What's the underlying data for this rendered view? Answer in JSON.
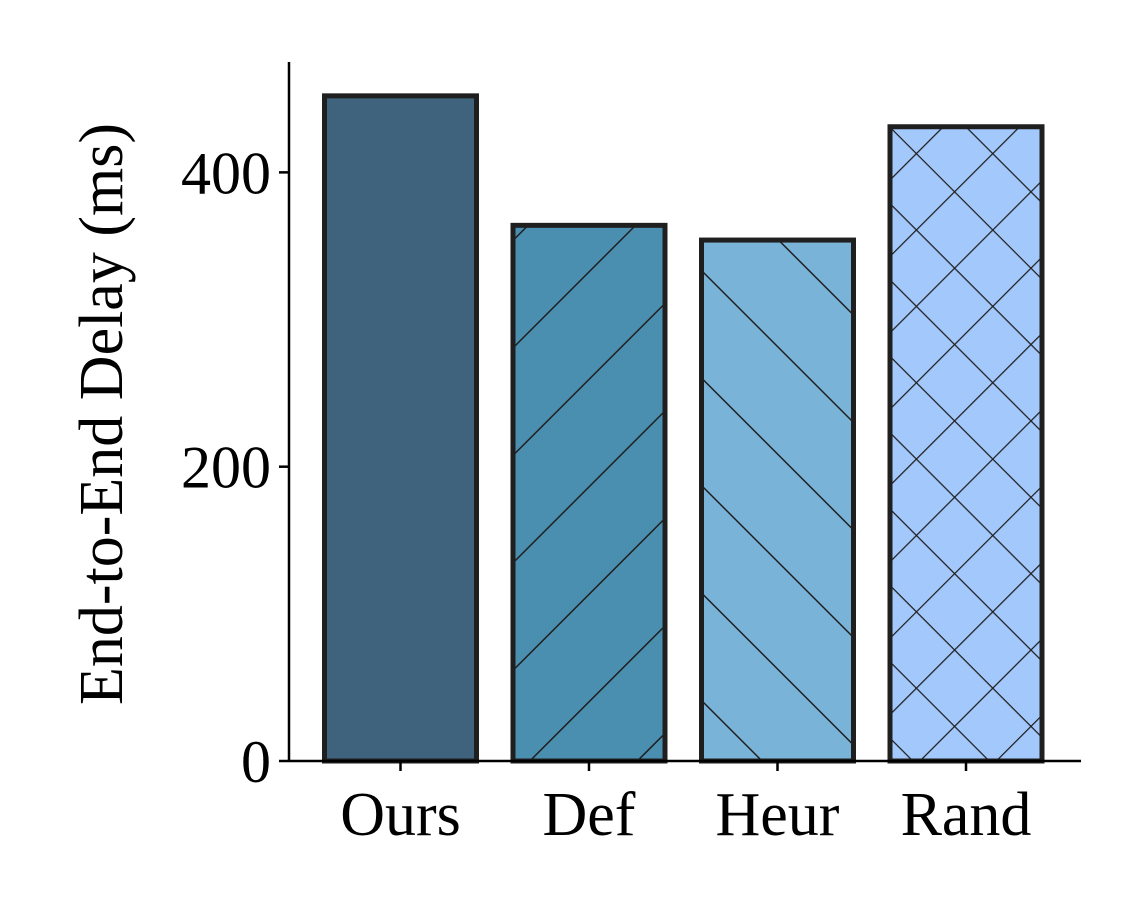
{
  "chart_data": {
    "type": "bar",
    "title": "",
    "xlabel": "",
    "ylabel": "End-to-End Delay (ms)",
    "categories": [
      "Ours",
      "Def",
      "Heur",
      "Rand"
    ],
    "values": [
      452,
      364,
      354,
      431
    ],
    "ylim": [
      0,
      475
    ],
    "yticks": [
      0,
      200,
      400
    ],
    "ytick_labels": [
      "0",
      "200",
      "400"
    ],
    "grid": false,
    "legend": "none",
    "colors": [
      "#3f637d",
      "#4b8fb0",
      "#79b4d8",
      "#a3c8fc"
    ],
    "hatches": [
      "none",
      "forward-diagonal",
      "back-diagonal",
      "cross"
    ],
    "edge_color": "#1f1f1f"
  }
}
